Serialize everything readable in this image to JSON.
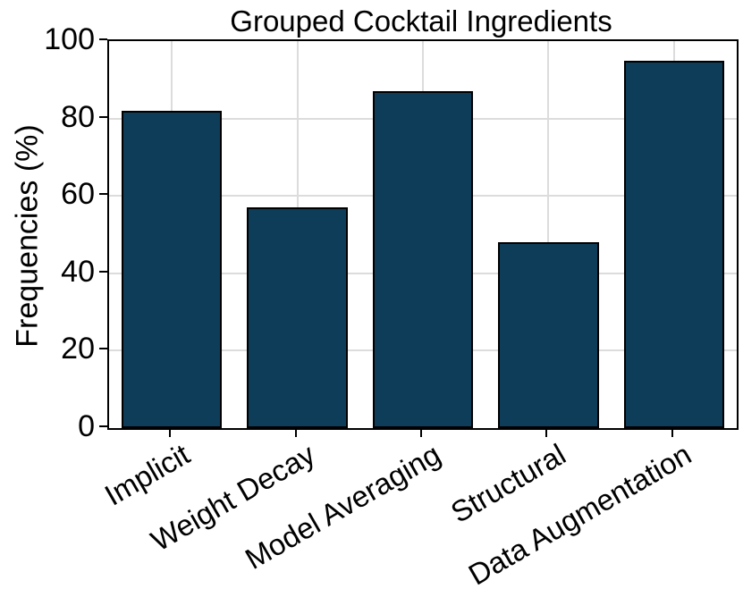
{
  "chart_data": {
    "type": "bar",
    "title": "Grouped Cocktail Ingredients",
    "ylabel": "Frequencies (%)",
    "xlabel": "",
    "categories": [
      "Implicit",
      "Weight Decay",
      "Model Averaging",
      "Structural",
      "Data Augmentation"
    ],
    "values": [
      82,
      57,
      87,
      48,
      95
    ],
    "ylim": [
      0,
      100
    ],
    "yticks": [
      0,
      20,
      40,
      60,
      80,
      100
    ],
    "grid": true,
    "legend_position": "none",
    "bar_color": "#0e3d59",
    "bar_edge_color": "#000000",
    "grid_color": "#dcdcdc",
    "x_tick_rotation_deg": 30
  }
}
